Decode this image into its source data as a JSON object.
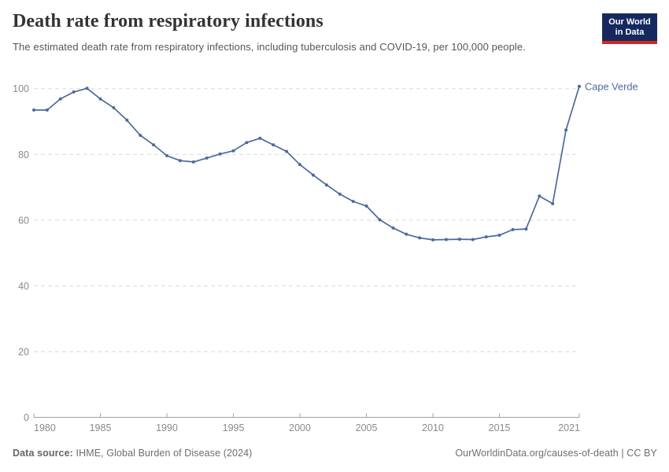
{
  "header": {
    "title": "Death rate from respiratory infections",
    "subtitle": "The estimated death rate from respiratory infections, including tuberculosis and COVID-19, per 100,000 people.",
    "logo": {
      "line1": "Our World",
      "line2": "in Data",
      "bg_color": "#16295f",
      "stripe_color": "#d0281f"
    }
  },
  "chart_data": {
    "type": "line",
    "title": "Death rate from respiratory infections",
    "entity_label": "Cape Verde",
    "xlabel": "",
    "ylabel": "",
    "ylim": [
      0,
      100
    ],
    "xlim": [
      1980,
      2021
    ],
    "y_ticks": [
      0,
      20,
      40,
      60,
      80,
      100
    ],
    "x_tick_labels": [
      "1980",
      "1985",
      "1990",
      "1995",
      "2000",
      "2005",
      "2010",
      "2015",
      "2021"
    ],
    "grid": "horizontal dashed",
    "legend_position": "end-of-line label",
    "line_color": "#4C6A9C",
    "gridline_color": "#dadada",
    "axis_color": "#a0a0a0",
    "tick_label_color": "#8a8a8a",
    "x": [
      1980,
      1981,
      1982,
      1983,
      1984,
      1985,
      1986,
      1987,
      1988,
      1989,
      1990,
      1991,
      1992,
      1993,
      1994,
      1995,
      1996,
      1997,
      1998,
      1999,
      2000,
      2001,
      2002,
      2003,
      2004,
      2005,
      2006,
      2007,
      2008,
      2009,
      2010,
      2011,
      2012,
      2013,
      2014,
      2015,
      2016,
      2017,
      2018,
      2019,
      2020,
      2021
    ],
    "series": [
      {
        "name": "Cape Verde",
        "values": [
          93.5,
          93.5,
          96.9,
          99.0,
          100.1,
          96.9,
          94.2,
          90.4,
          85.8,
          82.9,
          79.6,
          78.1,
          77.7,
          78.9,
          80.1,
          81.1,
          83.6,
          84.9,
          82.9,
          80.9,
          76.9,
          73.7,
          70.7,
          67.9,
          65.7,
          64.3,
          60.1,
          57.6,
          55.7,
          54.6,
          54.0,
          54.1,
          54.2,
          54.1,
          54.9,
          55.4,
          57.1,
          57.3,
          67.3,
          65.0,
          87.4,
          100.7
        ]
      }
    ]
  },
  "footer": {
    "datasource_label": "Data source:",
    "datasource_value": " IHME, Global Burden of Disease (2024)",
    "link": "OurWorldinData.org/causes-of-death | CC BY"
  }
}
